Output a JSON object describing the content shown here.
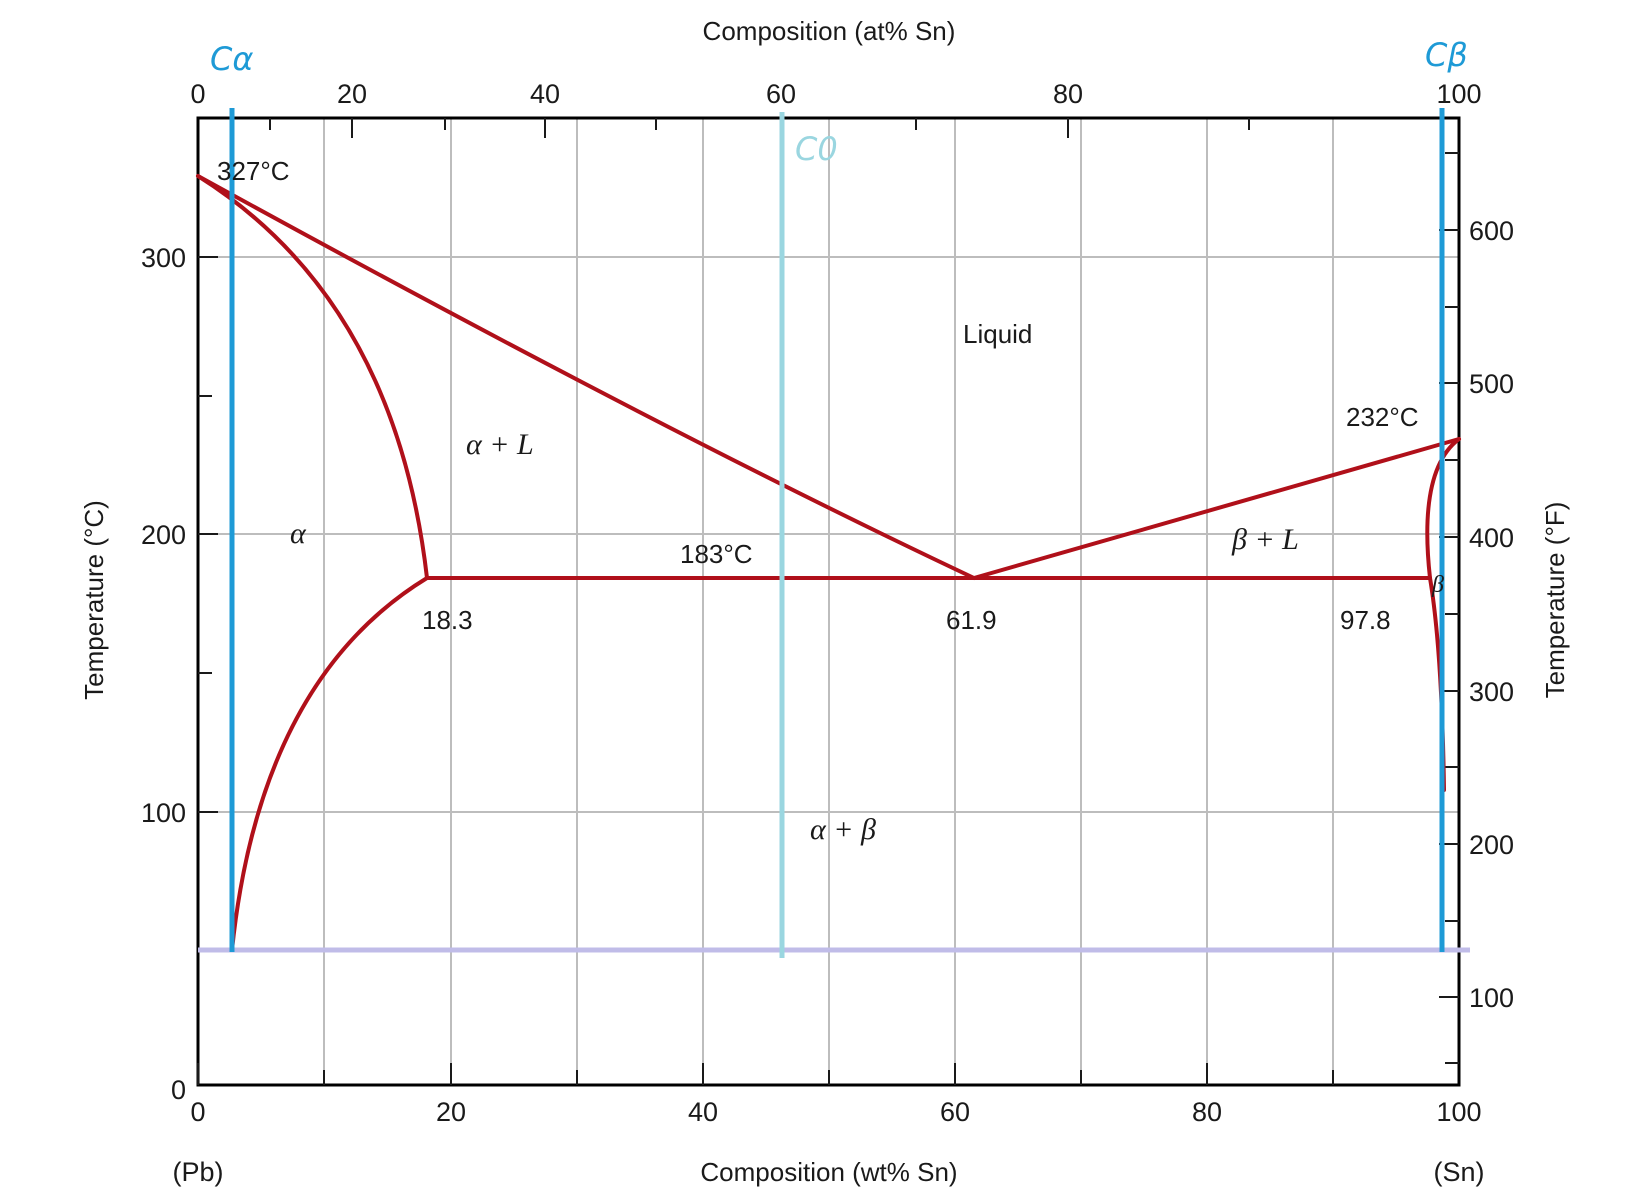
{
  "axes": {
    "bottom_title": "Composition (wt% Sn)",
    "top_title": "Composition (at% Sn)",
    "left_title": "Temperature (°C)",
    "right_title": "Temperature (°F)",
    "bottom_ticks": [
      "0",
      "20",
      "40",
      "60",
      "80",
      "100"
    ],
    "top_ticks": [
      "0",
      "20",
      "40",
      "60",
      "80",
      "100"
    ],
    "left_ticks": [
      "0",
      "100",
      "200",
      "300"
    ],
    "right_ticks": [
      "100",
      "200",
      "300",
      "400",
      "500",
      "600"
    ],
    "pb_label": "(Pb)",
    "sn_label": "(Sn)"
  },
  "regions": {
    "liquid": "Liquid",
    "alpha_l": "α + L",
    "alpha": "α",
    "beta_l": "β + L",
    "beta": "β",
    "alpha_beta": "α + β"
  },
  "annotations": {
    "pb_melt": "327°C",
    "sn_melt": "232°C",
    "eutectic_temp": "183°C",
    "c_alpha": "18.3",
    "c_eutectic": "61.9",
    "c_beta": "97.8"
  },
  "handwritten": {
    "c_alpha": "Cα",
    "c_beta": "Cβ",
    "c_0": "C0"
  },
  "colors": {
    "phase_lines": "#b0101a",
    "marker_lines": "#1e9ad6",
    "c0_line": "#9ad6e0",
    "temp_line": "#c0bce8",
    "grid": "#bdbdbd"
  }
}
